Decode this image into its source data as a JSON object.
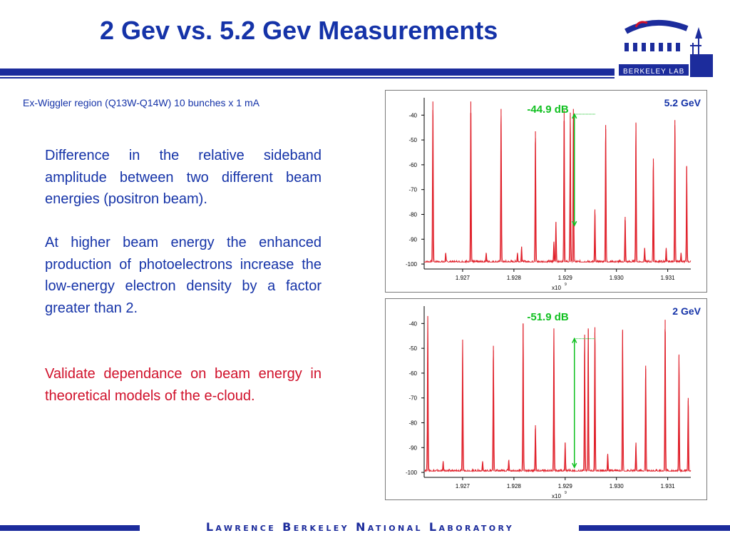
{
  "slide": {
    "title": "2 Gev vs. 5.2 Gev Measurements",
    "subtitle": "Ex-Wiggler region (Q13W-Q14W) 10 bunches x 1 mA",
    "paragraphs": [
      "Difference in the relative sideband amplitude between two different beam energies (positron beam).",
      "At higher beam energy the enhanced production of photoelectrons increase the low-energy electron density by a factor greater than 2.",
      "Validate dependance on beam energy in theoretical models of the e-cloud."
    ],
    "logo_text": "BERKELEY LAB",
    "footer": "Lawrence Berkeley National Laboratory",
    "colors": {
      "title_blue": "#1533a8",
      "highlight_red": "#d0102a",
      "bar_blue": "#1c2c9c",
      "trace_red": "#e0202a",
      "annotation_green": "#10c020"
    }
  },
  "chart_data": [
    {
      "type": "line",
      "panel_label": "5.2 GeV",
      "annotation": "-44.9 dB",
      "xlabel": "x10",
      "xlabel_exponent": "9",
      "ylabel": "",
      "xlim": [
        1.92625,
        1.93145
      ],
      "ylim": [
        -102,
        -33
      ],
      "x_ticks": [
        "1.927",
        "1.928",
        "1.929",
        "1.930",
        "1.931"
      ],
      "y_ticks": [
        "-40",
        "-50",
        "-60",
        "-70",
        "-80",
        "-90",
        "-100"
      ],
      "annotation_range": [
        -84.5,
        -39.6
      ],
      "noise_floor": -99.2,
      "peaks": [
        {
          "x": 1.92642,
          "y": -34.5
        },
        {
          "x": 1.92667,
          "y": -95.5
        },
        {
          "x": 1.92716,
          "y": -34.5
        },
        {
          "x": 1.92746,
          "y": -95.5
        },
        {
          "x": 1.92775,
          "y": -37.5
        },
        {
          "x": 1.92807,
          "y": -95.5
        },
        {
          "x": 1.92815,
          "y": -93.0
        },
        {
          "x": 1.92842,
          "y": -46.5
        },
        {
          "x": 1.92878,
          "y": -91.0
        },
        {
          "x": 1.92882,
          "y": -83.0
        },
        {
          "x": 1.92898,
          "y": -38.0
        },
        {
          "x": 1.9291,
          "y": -39.0
        },
        {
          "x": 1.92916,
          "y": -37.5
        },
        {
          "x": 1.92958,
          "y": -78.0
        },
        {
          "x": 1.92979,
          "y": -44.0
        },
        {
          "x": 1.93017,
          "y": -81.0
        },
        {
          "x": 1.93038,
          "y": -43.0
        },
        {
          "x": 1.93055,
          "y": -93.5
        },
        {
          "x": 1.93072,
          "y": -57.5
        },
        {
          "x": 1.93097,
          "y": -93.5
        },
        {
          "x": 1.93114,
          "y": -42.0
        },
        {
          "x": 1.93126,
          "y": -95.5
        },
        {
          "x": 1.93137,
          "y": -60.5
        }
      ]
    },
    {
      "type": "line",
      "panel_label": "2 GeV",
      "annotation": "-51.9 dB",
      "xlabel": "x10",
      "xlabel_exponent": "9",
      "ylabel": "",
      "xlim": [
        1.92625,
        1.93145
      ],
      "ylim": [
        -102,
        -33
      ],
      "x_ticks": [
        "1.927",
        "1.928",
        "1.929",
        "1.930",
        "1.931"
      ],
      "y_ticks": [
        "-40",
        "-50",
        "-60",
        "-70",
        "-80",
        "-90",
        "-100"
      ],
      "annotation_range": [
        -98.0,
        -46.1
      ],
      "noise_floor": -99.5,
      "peaks": [
        {
          "x": 1.92632,
          "y": -37.0
        },
        {
          "x": 1.92662,
          "y": -95.5
        },
        {
          "x": 1.927,
          "y": -46.5
        },
        {
          "x": 1.92739,
          "y": -95.5
        },
        {
          "x": 1.9276,
          "y": -49.0
        },
        {
          "x": 1.9279,
          "y": -95.0
        },
        {
          "x": 1.92818,
          "y": -40.0
        },
        {
          "x": 1.92842,
          "y": -81.0
        },
        {
          "x": 1.92878,
          "y": -42.0
        },
        {
          "x": 1.929,
          "y": -88.0
        },
        {
          "x": 1.92938,
          "y": -44.5
        },
        {
          "x": 1.92945,
          "y": -42.0
        },
        {
          "x": 1.92958,
          "y": -41.5
        },
        {
          "x": 1.92983,
          "y": -92.5
        },
        {
          "x": 1.93012,
          "y": -42.5
        },
        {
          "x": 1.93038,
          "y": -88.0
        },
        {
          "x": 1.93057,
          "y": -57.0
        },
        {
          "x": 1.93095,
          "y": -38.5
        },
        {
          "x": 1.93122,
          "y": -52.5
        },
        {
          "x": 1.9314,
          "y": -70.0
        }
      ]
    }
  ]
}
